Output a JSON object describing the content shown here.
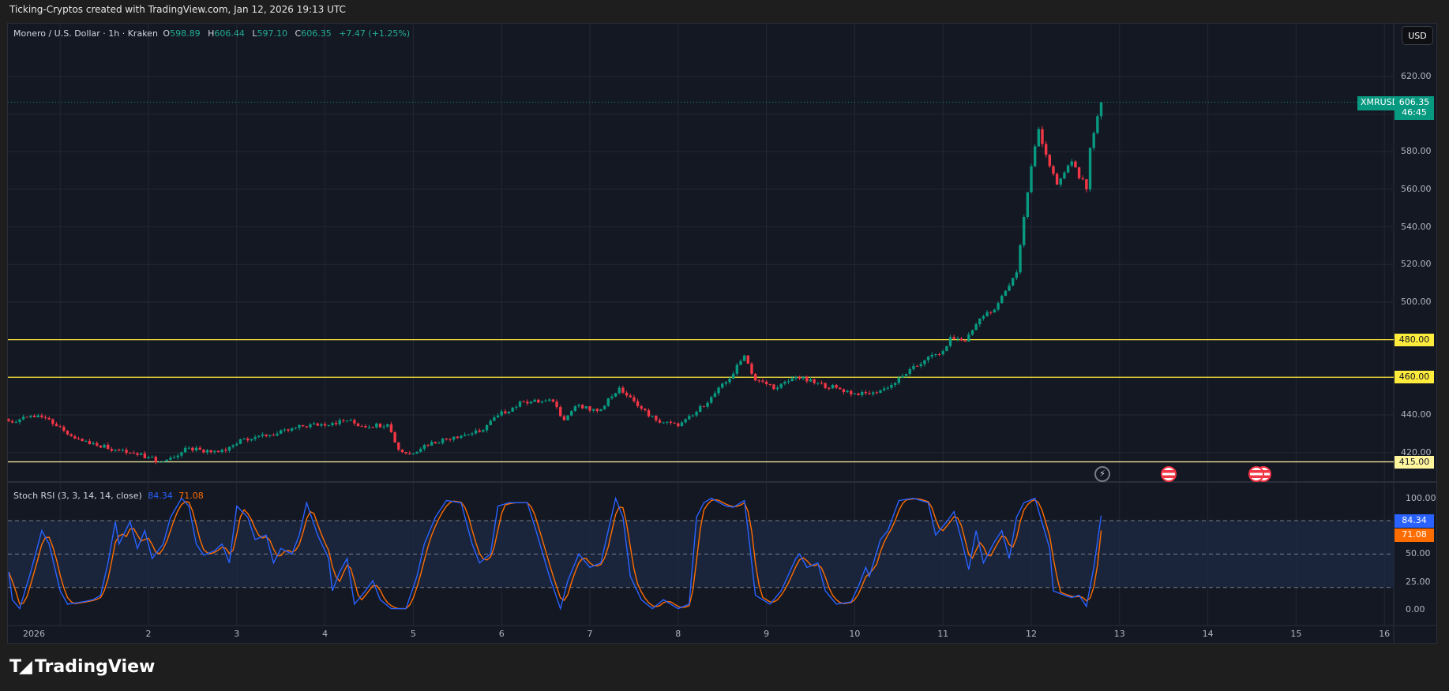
{
  "credit": "Ticking-Cryptos created with TradingView.com, Jan 12, 2026 19:13 UTC",
  "legend": {
    "symbol": "Monero / U.S. Dollar · 1h · Kraken",
    "o_label": "O",
    "o": "598.89",
    "h_label": "H",
    "h": "606.44",
    "l_label": "L",
    "l": "597.10",
    "c_label": "C",
    "c": "606.35",
    "change": "+7.47 (+1.25%)"
  },
  "currency_button": "USD",
  "current_price": {
    "ticker": "XMRUSD",
    "price": "606.35",
    "countdown": "46:45",
    "color": "#089981"
  },
  "price_axis": {
    "ticks": [
      "620.00",
      "580.00",
      "560.00",
      "540.00",
      "520.00",
      "500.00",
      "440.00",
      "420.00"
    ],
    "tick_values": [
      620,
      580,
      560,
      540,
      520,
      500,
      440,
      420
    ],
    "range": [
      408,
      630
    ]
  },
  "horizontal_lines": [
    {
      "value": 480,
      "label": "480.00",
      "color": "#ffeb3b"
    },
    {
      "value": 460,
      "label": "460.00",
      "color": "#ffeb3b"
    },
    {
      "value": 415,
      "label": "415.00",
      "color": "#fff59d"
    }
  ],
  "time_axis": {
    "labels": [
      "2026",
      "2",
      "3",
      "4",
      "5",
      "6",
      "7",
      "8",
      "9",
      "10",
      "11",
      "12",
      "13",
      "14",
      "15",
      "16"
    ]
  },
  "events": [
    {
      "type": "lightning-icon"
    },
    {
      "type": "us-flag-icon"
    },
    {
      "type": "us-flag-icon"
    },
    {
      "type": "us-flag-icon"
    }
  ],
  "stoch": {
    "title": "Stoch RSI (3, 3, 14, 14, close)",
    "k_value": "84.34",
    "d_value": "71.08",
    "k_color": "#2962ff",
    "d_color": "#ff6d00",
    "axis_ticks": [
      "100.00",
      "50.00",
      "25.00",
      "0.00"
    ],
    "bands": [
      80,
      50,
      20
    ]
  },
  "chart_data": {
    "type": "candlestick",
    "interval": "1h",
    "colors": {
      "up": "#089981",
      "down": "#f23645"
    },
    "last_candle": {
      "open": 598.89,
      "high": 606.44,
      "low": 597.1,
      "close": 606.35
    },
    "close_path": [
      [
        "2025-12-31 10:00",
        436.7
      ],
      [
        "2025-12-31 18:00",
        439.7
      ],
      [
        "2025-12-31 23:00",
        434
      ],
      [
        "2026-01-01 04:00",
        427.4
      ],
      [
        "2026-01-01 09:00",
        425
      ],
      [
        "2026-01-01 16:00",
        421
      ],
      [
        "2026-01-02 00:00",
        417.5
      ],
      [
        "2026-01-02 03:00",
        415
      ],
      [
        "2026-01-02 07:00",
        417.5
      ],
      [
        "2026-01-02 11:00",
        422.5
      ],
      [
        "2026-01-02 15:00",
        420
      ],
      [
        "2026-01-02 21:00",
        421
      ],
      [
        "2026-01-03 01:00",
        427
      ],
      [
        "2026-01-03 06:00",
        428.8
      ],
      [
        "2026-01-03 11:00",
        430
      ],
      [
        "2026-01-03 18:00",
        434
      ],
      [
        "2026-01-04 02:00",
        435.7
      ],
      [
        "2026-01-04 06:00",
        437
      ],
      [
        "2026-01-04 10:00",
        434
      ],
      [
        "2026-01-04 17:00",
        435
      ],
      [
        "2026-01-04 20:00",
        421.5
      ],
      [
        "2026-01-04 23:00",
        419
      ],
      [
        "2026-01-05 03:00",
        424
      ],
      [
        "2026-01-05 11:00",
        428.4
      ],
      [
        "2026-01-05 18:00",
        431
      ],
      [
        "2026-01-05 23:00",
        439.7
      ],
      [
        "2026-01-06 06:00",
        447
      ],
      [
        "2026-01-06 14:00",
        447
      ],
      [
        "2026-01-06 17:00",
        437.2
      ],
      [
        "2026-01-06 20:00",
        444.6
      ],
      [
        "2026-01-07 02:00",
        442
      ],
      [
        "2026-01-07 08:00",
        454.4
      ],
      [
        "2026-01-07 13:00",
        444.6
      ],
      [
        "2026-01-07 18:00",
        437.2
      ],
      [
        "2026-01-08 00:00",
        434
      ],
      [
        "2026-01-08 04:00",
        439.7
      ],
      [
        "2026-01-08 09:00",
        449.5
      ],
      [
        "2026-01-08 14:00",
        459.3
      ],
      [
        "2026-01-08 18:00",
        471.6
      ],
      [
        "2026-01-08 21:00",
        458.3
      ],
      [
        "2026-01-09 03:00",
        454.4
      ],
      [
        "2026-01-09 08:00",
        460.3
      ],
      [
        "2026-01-09 13:00",
        456.9
      ],
      [
        "2026-01-09 19:00",
        454.4
      ],
      [
        "2026-01-10 01:00",
        450.5
      ],
      [
        "2026-01-10 05:00",
        452
      ],
      [
        "2026-01-10 09:00",
        454.4
      ],
      [
        "2026-01-10 14:00",
        461.8
      ],
      [
        "2026-01-10 19:00",
        469.1
      ],
      [
        "2026-01-11 00:00",
        474
      ],
      [
        "2026-01-11 02:00",
        481.4
      ],
      [
        "2026-01-11 06:00",
        479
      ],
      [
        "2026-01-11 10:00",
        491.3
      ],
      [
        "2026-01-11 14:00",
        496
      ],
      [
        "2026-01-11 17:00",
        506
      ],
      [
        "2026-01-11 20:00",
        515.8
      ],
      [
        "2026-01-11 22:00",
        545.3
      ],
      [
        "2026-01-12 00:00",
        572.3
      ],
      [
        "2026-01-12 02:00",
        592
      ],
      [
        "2026-01-12 05:00",
        572.3
      ],
      [
        "2026-01-12 07:00",
        562.5
      ],
      [
        "2026-01-12 11:00",
        574.8
      ],
      [
        "2026-01-12 15:00",
        560
      ],
      [
        "2026-01-12 16:00",
        582
      ],
      [
        "2026-01-12 18:00",
        598.89
      ],
      [
        "2026-01-12 19:00",
        606.35
      ]
    ],
    "stoch_k_path": [
      [
        "2025-12-31 10:00",
        34
      ],
      [
        "2025-12-31 11:00",
        9
      ],
      [
        "2025-12-31 13:00",
        1
      ],
      [
        "2025-12-31 16:00",
        34
      ],
      [
        "2025-12-31 19:00",
        71
      ],
      [
        "2025-12-31 21:00",
        59
      ],
      [
        "2026-01-01 00:00",
        17
      ],
      [
        "2026-01-01 02:00",
        5
      ],
      [
        "2026-01-01 06:00",
        7
      ],
      [
        "2026-01-01 09:00",
        9
      ],
      [
        "2026-01-01 11:00",
        13
      ],
      [
        "2026-01-01 13:00",
        42
      ],
      [
        "2026-01-01 15:00",
        79
      ],
      [
        "2026-01-01 16:00",
        59
      ],
      [
        "2026-01-01 19:00",
        79
      ],
      [
        "2026-01-01 21:00",
        55
      ],
      [
        "2026-01-01 23:00",
        71
      ],
      [
        "2026-01-02 01:00",
        46
      ],
      [
        "2026-01-02 04:00",
        59
      ],
      [
        "2026-01-02 06:00",
        83
      ],
      [
        "2026-01-02 09:00",
        100
      ],
      [
        "2026-01-02 11:00",
        93
      ],
      [
        "2026-01-02 13:00",
        59
      ],
      [
        "2026-01-02 15:00",
        49
      ],
      [
        "2026-01-02 18:00",
        53
      ],
      [
        "2026-01-02 20:00",
        59
      ],
      [
        "2026-01-02 22:00",
        42
      ],
      [
        "2026-01-03 00:00",
        93
      ],
      [
        "2026-01-03 03:00",
        83
      ],
      [
        "2026-01-03 05:00",
        63
      ],
      [
        "2026-01-03 08:00",
        67
      ],
      [
        "2026-01-03 10:00",
        42
      ],
      [
        "2026-01-03 12:00",
        55
      ],
      [
        "2026-01-03 15:00",
        50
      ],
      [
        "2026-01-03 17:00",
        67
      ],
      [
        "2026-01-03 19:00",
        96
      ],
      [
        "2026-01-03 22:00",
        67
      ],
      [
        "2026-01-04 01:00",
        46
      ],
      [
        "2026-01-04 02:00",
        17
      ],
      [
        "2026-01-04 04:00",
        34
      ],
      [
        "2026-01-04 06:00",
        46
      ],
      [
        "2026-01-04 08:00",
        5
      ],
      [
        "2026-01-04 11:00",
        17
      ],
      [
        "2026-01-04 13:00",
        26
      ],
      [
        "2026-01-04 15:00",
        9
      ],
      [
        "2026-01-04 18:00",
        1
      ],
      [
        "2026-01-04 22:00",
        1
      ],
      [
        "2026-01-05 01:00",
        30
      ],
      [
        "2026-01-05 03:00",
        59
      ],
      [
        "2026-01-05 06:00",
        83
      ],
      [
        "2026-01-05 09:00",
        98
      ],
      [
        "2026-01-05 13:00",
        96
      ],
      [
        "2026-01-05 16:00",
        59
      ],
      [
        "2026-01-05 18:00",
        42
      ],
      [
        "2026-01-05 21:00",
        50
      ],
      [
        "2026-01-05 23:00",
        93
      ],
      [
        "2026-01-06 02:00",
        96
      ],
      [
        "2026-01-06 07:00",
        96
      ],
      [
        "2026-01-06 09:00",
        75
      ],
      [
        "2026-01-06 13:00",
        30
      ],
      [
        "2026-01-06 16:00",
        1
      ],
      [
        "2026-01-06 18:00",
        26
      ],
      [
        "2026-01-06 21:00",
        50
      ],
      [
        "2026-01-07 00:00",
        38
      ],
      [
        "2026-01-07 03:00",
        42
      ],
      [
        "2026-01-07 07:00",
        100
      ],
      [
        "2026-01-07 09:00",
        83
      ],
      [
        "2026-01-07 11:00",
        30
      ],
      [
        "2026-01-07 14:00",
        9
      ],
      [
        "2026-01-07 17:00",
        1
      ],
      [
        "2026-01-07 20:00",
        9
      ],
      [
        "2026-01-08 00:00",
        1
      ],
      [
        "2026-01-08 03:00",
        5
      ],
      [
        "2026-01-08 05:00",
        83
      ],
      [
        "2026-01-08 07:00",
        96
      ],
      [
        "2026-01-08 09:00",
        100
      ],
      [
        "2026-01-08 13:00",
        93
      ],
      [
        "2026-01-08 15:00",
        92
      ],
      [
        "2026-01-08 18:00",
        98
      ],
      [
        "2026-01-08 19:00",
        71
      ],
      [
        "2026-01-08 21:00",
        13
      ],
      [
        "2026-01-09 01:00",
        5
      ],
      [
        "2026-01-09 04:00",
        17
      ],
      [
        "2026-01-09 08:00",
        46
      ],
      [
        "2026-01-09 09:00",
        50
      ],
      [
        "2026-01-09 11:00",
        38
      ],
      [
        "2026-01-09 14:00",
        42
      ],
      [
        "2026-01-09 16:00",
        17
      ],
      [
        "2026-01-09 19:00",
        5
      ],
      [
        "2026-01-09 23:00",
        7
      ],
      [
        "2026-01-10 01:00",
        21
      ],
      [
        "2026-01-10 03:00",
        38
      ],
      [
        "2026-01-10 04:00",
        30
      ],
      [
        "2026-01-10 07:00",
        63
      ],
      [
        "2026-01-10 09:00",
        71
      ],
      [
        "2026-01-10 12:00",
        98
      ],
      [
        "2026-01-10 16:00",
        100
      ],
      [
        "2026-01-10 20:00",
        96
      ],
      [
        "2026-01-10 22:00",
        67
      ],
      [
        "2026-01-11 01:00",
        79
      ],
      [
        "2026-01-11 03:00",
        88
      ],
      [
        "2026-01-11 05:00",
        63
      ],
      [
        "2026-01-11 07:00",
        36
      ],
      [
        "2026-01-11 09:00",
        71
      ],
      [
        "2026-01-11 11:00",
        42
      ],
      [
        "2026-01-11 14:00",
        61
      ],
      [
        "2026-01-11 16:00",
        71
      ],
      [
        "2026-01-11 18:00",
        46
      ],
      [
        "2026-01-11 20:00",
        83
      ],
      [
        "2026-01-11 22:00",
        96
      ],
      [
        "2026-01-12 01:00",
        100
      ],
      [
        "2026-01-12 05:00",
        55
      ],
      [
        "2026-01-12 06:00",
        17
      ],
      [
        "2026-01-12 09:00",
        13
      ],
      [
        "2026-01-12 11:00",
        11
      ],
      [
        "2026-01-12 13:00",
        13
      ],
      [
        "2026-01-12 15:00",
        3
      ],
      [
        "2026-01-12 17:00",
        38
      ],
      [
        "2026-01-12 19:00",
        84.34
      ]
    ]
  },
  "brand": "TradingView"
}
